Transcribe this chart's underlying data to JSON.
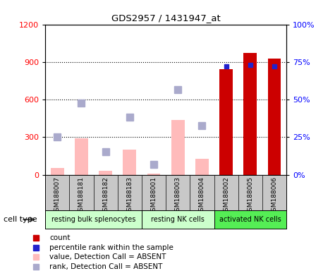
{
  "title": "GDS2957 / 1431947_at",
  "samples": [
    "GSM188007",
    "GSM188181",
    "GSM188182",
    "GSM188183",
    "GSM188001",
    "GSM188003",
    "GSM188004",
    "GSM188002",
    "GSM188005",
    "GSM188006"
  ],
  "cell_types": [
    {
      "label": "resting bulk splenocytes",
      "start": 0,
      "end": 3,
      "color": "#ccffcc"
    },
    {
      "label": "resting NK cells",
      "start": 4,
      "end": 6,
      "color": "#ccffcc"
    },
    {
      "label": "activated NK cells",
      "start": 7,
      "end": 9,
      "color": "#55ee55"
    }
  ],
  "count_values": [
    null,
    null,
    null,
    null,
    null,
    null,
    null,
    840,
    970,
    930
  ],
  "percentile_values": [
    null,
    null,
    null,
    null,
    null,
    null,
    null,
    72,
    73,
    72
  ],
  "value_absent": [
    55,
    290,
    30,
    200,
    10,
    440,
    130,
    null,
    null,
    null
  ],
  "rank_absent": [
    null,
    575,
    185,
    460,
    85,
    680,
    390,
    null,
    null,
    null
  ],
  "rank_absent_small": [
    300,
    null,
    null,
    null,
    null,
    null,
    null,
    null,
    null,
    null
  ],
  "ylim_left": [
    0,
    1200
  ],
  "ylim_right": [
    0,
    100
  ],
  "yticks_left": [
    0,
    300,
    600,
    900,
    1200
  ],
  "yticks_right": [
    0,
    25,
    50,
    75,
    100
  ],
  "ytick_labels_right": [
    "0%",
    "25%",
    "50%",
    "75%",
    "100%"
  ],
  "color_count": "#cc0000",
  "color_percentile": "#2222cc",
  "color_value_absent": "#ffbbbb",
  "color_rank_absent": "#aaaacc"
}
